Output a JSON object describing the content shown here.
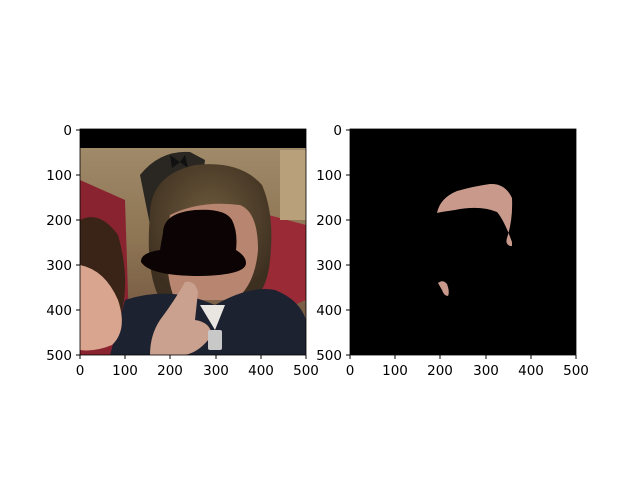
{
  "figure": {
    "background": "#ffffff",
    "panels": [
      {
        "name": "panel-left-photo",
        "content": "photo of man with black hat silhouette drawn over face",
        "x_range": [
          0,
          500
        ],
        "y_range": [
          0,
          500
        ],
        "x_ticks": [
          "0",
          "100",
          "200",
          "300",
          "400",
          "500"
        ],
        "y_ticks": [
          "0",
          "100",
          "200",
          "300",
          "400",
          "500"
        ]
      },
      {
        "name": "panel-right-mask",
        "content": "black mask showing only segmented skin regions",
        "x_range": [
          0,
          500
        ],
        "y_range": [
          0,
          500
        ],
        "x_ticks": [
          "0",
          "100",
          "200",
          "300",
          "400",
          "500"
        ],
        "y_ticks": [
          "0",
          "100",
          "200",
          "300",
          "400",
          "500"
        ]
      }
    ],
    "colors": {
      "mask_background": "#000000",
      "skin": "#c99a8c",
      "hat": "#0c0404",
      "suit": "#1d2230",
      "red_carpet": "#9a2a35"
    }
  }
}
